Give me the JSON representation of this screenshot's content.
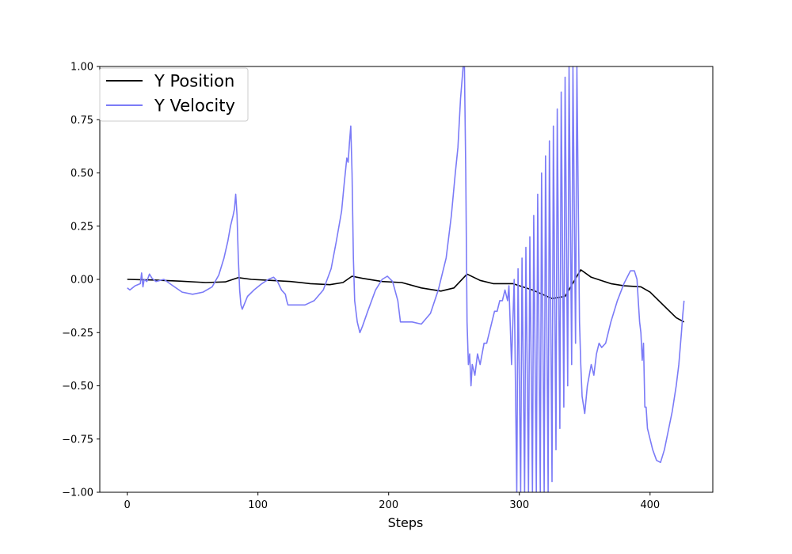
{
  "chart_data": {
    "type": "line",
    "title": "",
    "xlabel": "Steps",
    "ylabel": "",
    "xlim": [
      -21,
      448
    ],
    "ylim": [
      -1.0,
      1.0
    ],
    "grid": false,
    "legend_position": "top-left",
    "x_ticks": [
      0,
      100,
      200,
      300,
      400
    ],
    "x_tick_labels": [
      "0",
      "100",
      "200",
      "300",
      "400"
    ],
    "y_ticks": [
      -1.0,
      -0.75,
      -0.5,
      -0.25,
      0.0,
      0.25,
      0.5,
      0.75,
      1.0
    ],
    "y_tick_labels": [
      "−1.00",
      "−0.75",
      "−0.50",
      "−0.25",
      "0.00",
      "0.25",
      "0.50",
      "0.75",
      "1.00"
    ],
    "series": [
      {
        "name": "Y Position",
        "color": "#000000",
        "opacity": 1.0,
        "points": [
          [
            0,
            0.0
          ],
          [
            20,
            -0.003
          ],
          [
            40,
            -0.008
          ],
          [
            60,
            -0.015
          ],
          [
            75,
            -0.012
          ],
          [
            85,
            0.008
          ],
          [
            95,
            0.0
          ],
          [
            110,
            -0.005
          ],
          [
            125,
            -0.01
          ],
          [
            140,
            -0.02
          ],
          [
            155,
            -0.025
          ],
          [
            165,
            -0.015
          ],
          [
            172,
            0.015
          ],
          [
            180,
            0.005
          ],
          [
            195,
            -0.01
          ],
          [
            210,
            -0.015
          ],
          [
            225,
            -0.04
          ],
          [
            240,
            -0.055
          ],
          [
            250,
            -0.04
          ],
          [
            260,
            0.025
          ],
          [
            270,
            -0.005
          ],
          [
            280,
            -0.02
          ],
          [
            295,
            -0.02
          ],
          [
            310,
            -0.05
          ],
          [
            325,
            -0.09
          ],
          [
            335,
            -0.08
          ],
          [
            347,
            0.045
          ],
          [
            355,
            0.01
          ],
          [
            370,
            -0.02
          ],
          [
            380,
            -0.03
          ],
          [
            393,
            -0.035
          ],
          [
            400,
            -0.06
          ],
          [
            410,
            -0.12
          ],
          [
            420,
            -0.18
          ],
          [
            426,
            -0.2
          ]
        ]
      },
      {
        "name": "Y Velocity",
        "color": "#7b7bf7",
        "opacity": 1.0,
        "points": [
          [
            0,
            -0.04
          ],
          [
            2,
            -0.05
          ],
          [
            6,
            -0.03
          ],
          [
            10,
            -0.02
          ],
          [
            11,
            0.03
          ],
          [
            12,
            -0.035
          ],
          [
            13,
            0.0
          ],
          [
            15,
            -0.01
          ],
          [
            17,
            0.025
          ],
          [
            19,
            0.005
          ],
          [
            22,
            -0.01
          ],
          [
            28,
            0.0
          ],
          [
            35,
            -0.03
          ],
          [
            42,
            -0.06
          ],
          [
            50,
            -0.07
          ],
          [
            58,
            -0.06
          ],
          [
            65,
            -0.035
          ],
          [
            70,
            0.02
          ],
          [
            74,
            0.1
          ],
          [
            77,
            0.18
          ],
          [
            79,
            0.25
          ],
          [
            81,
            0.3
          ],
          [
            82,
            0.33
          ],
          [
            83,
            0.4
          ],
          [
            84,
            0.3
          ],
          [
            85,
            0.1
          ],
          [
            86,
            -0.05
          ],
          [
            87,
            -0.12
          ],
          [
            88,
            -0.14
          ],
          [
            92,
            -0.08
          ],
          [
            97,
            -0.05
          ],
          [
            103,
            -0.02
          ],
          [
            108,
            0.0
          ],
          [
            112,
            0.01
          ],
          [
            115,
            -0.01
          ],
          [
            118,
            -0.05
          ],
          [
            121,
            -0.07
          ],
          [
            122,
            -0.1
          ],
          [
            123,
            -0.12
          ],
          [
            128,
            -0.12
          ],
          [
            136,
            -0.12
          ],
          [
            143,
            -0.1
          ],
          [
            150,
            -0.05
          ],
          [
            156,
            0.05
          ],
          [
            160,
            0.18
          ],
          [
            164,
            0.32
          ],
          [
            166,
            0.45
          ],
          [
            168,
            0.57
          ],
          [
            169,
            0.55
          ],
          [
            170,
            0.64
          ],
          [
            171,
            0.72
          ],
          [
            172,
            0.5
          ],
          [
            173,
            0.1
          ],
          [
            174,
            -0.1
          ],
          [
            176,
            -0.2
          ],
          [
            178,
            -0.25
          ],
          [
            180,
            -0.22
          ],
          [
            184,
            -0.15
          ],
          [
            190,
            -0.05
          ],
          [
            195,
            0.0
          ],
          [
            199,
            0.015
          ],
          [
            203,
            -0.01
          ],
          [
            207,
            -0.1
          ],
          [
            209,
            -0.2
          ],
          [
            212,
            -0.2
          ],
          [
            218,
            -0.2
          ],
          [
            225,
            -0.21
          ],
          [
            232,
            -0.16
          ],
          [
            238,
            -0.05
          ],
          [
            244,
            0.1
          ],
          [
            248,
            0.3
          ],
          [
            251,
            0.5
          ],
          [
            253,
            0.62
          ],
          [
            255,
            0.85
          ],
          [
            257,
            1.0
          ],
          [
            258,
            1.0
          ],
          [
            259,
            0.5
          ],
          [
            260,
            -0.2
          ],
          [
            261,
            -0.4
          ],
          [
            262,
            -0.35
          ],
          [
            263,
            -0.5
          ],
          [
            264,
            -0.4
          ],
          [
            266,
            -0.45
          ],
          [
            268,
            -0.35
          ],
          [
            270,
            -0.4
          ],
          [
            273,
            -0.3
          ],
          [
            275,
            -0.3
          ],
          [
            277,
            -0.25
          ],
          [
            279,
            -0.2
          ],
          [
            281,
            -0.15
          ],
          [
            283,
            -0.15
          ],
          [
            285,
            -0.1
          ],
          [
            287,
            -0.1
          ],
          [
            289,
            -0.05
          ],
          [
            291,
            -0.1
          ],
          [
            292,
            -0.03
          ],
          [
            294,
            -0.4
          ],
          [
            296,
            0.0
          ],
          [
            298,
            -1.0
          ],
          [
            299,
            0.05
          ],
          [
            301,
            -1.0
          ],
          [
            302,
            0.1
          ],
          [
            304,
            -1.0
          ],
          [
            305,
            0.15
          ],
          [
            307,
            -1.0
          ],
          [
            308,
            0.2
          ],
          [
            310,
            -1.0
          ],
          [
            311,
            0.3
          ],
          [
            313,
            -1.0
          ],
          [
            314,
            0.4
          ],
          [
            316,
            -1.0
          ],
          [
            317,
            0.5
          ],
          [
            319,
            -1.0
          ],
          [
            320,
            0.58
          ],
          [
            322,
            -1.0
          ],
          [
            323,
            0.65
          ],
          [
            325,
            -0.95
          ],
          [
            326,
            0.72
          ],
          [
            328,
            -0.8
          ],
          [
            329,
            0.8
          ],
          [
            331,
            -0.7
          ],
          [
            332,
            0.88
          ],
          [
            334,
            -0.6
          ],
          [
            335,
            0.95
          ],
          [
            337,
            -0.5
          ],
          [
            338,
            1.0
          ],
          [
            340,
            -0.4
          ],
          [
            341,
            1.0
          ],
          [
            343,
            -0.3
          ],
          [
            344,
            1.0
          ],
          [
            346,
            -0.2
          ],
          [
            347,
            -0.4
          ],
          [
            348,
            -0.55
          ],
          [
            350,
            -0.63
          ],
          [
            352,
            -0.5
          ],
          [
            355,
            -0.4
          ],
          [
            357,
            -0.45
          ],
          [
            359,
            -0.35
          ],
          [
            361,
            -0.3
          ],
          [
            363,
            -0.32
          ],
          [
            366,
            -0.3
          ],
          [
            370,
            -0.2
          ],
          [
            375,
            -0.1
          ],
          [
            380,
            -0.02
          ],
          [
            385,
            0.04
          ],
          [
            388,
            0.04
          ],
          [
            390,
            0.0
          ],
          [
            391,
            -0.1
          ],
          [
            392,
            -0.2
          ],
          [
            393,
            -0.25
          ],
          [
            394,
            -0.38
          ],
          [
            395,
            -0.3
          ],
          [
            396,
            -0.6
          ],
          [
            397,
            -0.6
          ],
          [
            398,
            -0.7
          ],
          [
            400,
            -0.75
          ],
          [
            402,
            -0.8
          ],
          [
            405,
            -0.85
          ],
          [
            408,
            -0.86
          ],
          [
            411,
            -0.8
          ],
          [
            415,
            -0.68
          ],
          [
            417,
            -0.62
          ],
          [
            420,
            -0.5
          ],
          [
            422,
            -0.4
          ],
          [
            424,
            -0.25
          ],
          [
            425,
            -0.17
          ],
          [
            426,
            -0.1
          ]
        ]
      }
    ]
  }
}
